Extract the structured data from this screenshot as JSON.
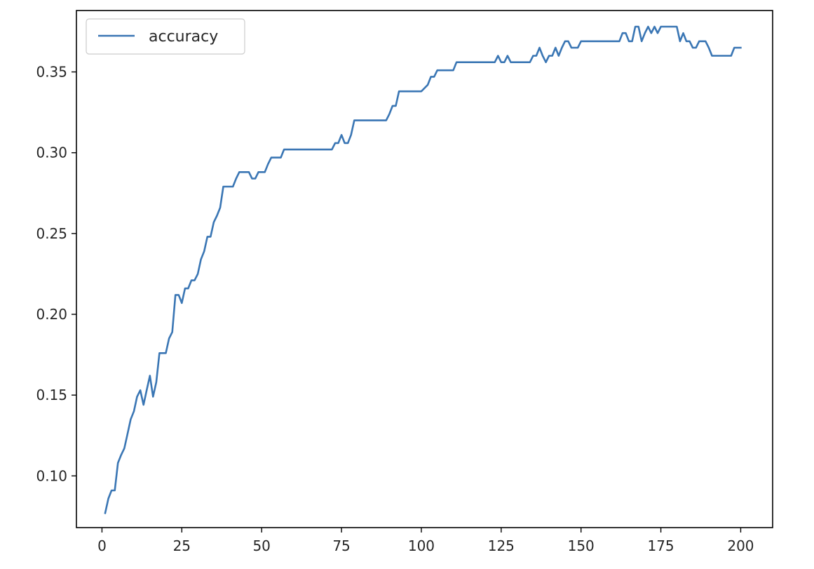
{
  "chart_data": {
    "type": "line",
    "title": "",
    "xlabel": "",
    "ylabel": "",
    "xlim": [
      -8,
      210
    ],
    "ylim": [
      0.068,
      0.388
    ],
    "xticks": [
      0,
      25,
      50,
      75,
      100,
      125,
      150,
      175,
      200
    ],
    "xtick_labels": [
      "0",
      "25",
      "50",
      "75",
      "100",
      "125",
      "150",
      "175",
      "200"
    ],
    "yticks": [
      0.1,
      0.15,
      0.2,
      0.25,
      0.3,
      0.35
    ],
    "ytick_labels": [
      "0.10",
      "0.15",
      "0.20",
      "0.25",
      "0.30",
      "0.35"
    ],
    "grid": false,
    "legend_position": "top-left",
    "series": [
      {
        "name": "accuracy",
        "color": "#3a76b4",
        "x": [
          1,
          2,
          3,
          4,
          5,
          6,
          7,
          8,
          9,
          10,
          11,
          12,
          13,
          14,
          15,
          16,
          17,
          18,
          19,
          20,
          21,
          22,
          23,
          24,
          25,
          26,
          27,
          28,
          29,
          30,
          31,
          32,
          33,
          34,
          35,
          36,
          37,
          38,
          39,
          40,
          41,
          42,
          43,
          44,
          45,
          46,
          47,
          48,
          49,
          50,
          51,
          52,
          53,
          54,
          55,
          56,
          57,
          60,
          65,
          70,
          72,
          73,
          74,
          75,
          76,
          77,
          78,
          79,
          80,
          85,
          89,
          90,
          91,
          92,
          93,
          94,
          95,
          100,
          102,
          103,
          104,
          105,
          106,
          110,
          111,
          115,
          120,
          123,
          124,
          125,
          126,
          127,
          128,
          130,
          134,
          135,
          136,
          137,
          138,
          139,
          140,
          141,
          142,
          143,
          144,
          145,
          146,
          147,
          148,
          149,
          150,
          155,
          160,
          162,
          163,
          164,
          165,
          166,
          167,
          168,
          169,
          170,
          171,
          172,
          173,
          174,
          175,
          176,
          177,
          178,
          179,
          180,
          181,
          182,
          183,
          184,
          185,
          186,
          187,
          188,
          189,
          190,
          191,
          192,
          193,
          195,
          197,
          198,
          199,
          200
        ],
        "y": [
          0.077,
          0.086,
          0.091,
          0.091,
          0.108,
          0.113,
          0.117,
          0.126,
          0.135,
          0.14,
          0.149,
          0.153,
          0.144,
          0.153,
          0.162,
          0.149,
          0.158,
          0.176,
          0.176,
          0.176,
          0.185,
          0.189,
          0.212,
          0.212,
          0.207,
          0.216,
          0.216,
          0.221,
          0.221,
          0.225,
          0.234,
          0.239,
          0.248,
          0.248,
          0.257,
          0.261,
          0.266,
          0.279,
          0.279,
          0.279,
          0.279,
          0.284,
          0.288,
          0.288,
          0.288,
          0.288,
          0.284,
          0.284,
          0.288,
          0.288,
          0.288,
          0.293,
          0.297,
          0.297,
          0.297,
          0.297,
          0.302,
          0.302,
          0.302,
          0.302,
          0.302,
          0.306,
          0.306,
          0.311,
          0.306,
          0.306,
          0.311,
          0.32,
          0.32,
          0.32,
          0.32,
          0.324,
          0.329,
          0.329,
          0.338,
          0.338,
          0.338,
          0.338,
          0.342,
          0.347,
          0.347,
          0.351,
          0.351,
          0.351,
          0.356,
          0.356,
          0.356,
          0.356,
          0.36,
          0.356,
          0.356,
          0.36,
          0.356,
          0.356,
          0.356,
          0.36,
          0.36,
          0.365,
          0.36,
          0.356,
          0.36,
          0.36,
          0.365,
          0.36,
          0.365,
          0.369,
          0.369,
          0.365,
          0.365,
          0.365,
          0.369,
          0.369,
          0.369,
          0.369,
          0.374,
          0.374,
          0.369,
          0.369,
          0.378,
          0.378,
          0.369,
          0.374,
          0.378,
          0.374,
          0.378,
          0.374,
          0.378,
          0.378,
          0.378,
          0.378,
          0.378,
          0.378,
          0.369,
          0.374,
          0.369,
          0.369,
          0.365,
          0.365,
          0.369,
          0.369,
          0.369,
          0.365,
          0.36,
          0.36,
          0.36,
          0.36,
          0.36,
          0.365,
          0.365,
          0.365
        ]
      }
    ]
  }
}
